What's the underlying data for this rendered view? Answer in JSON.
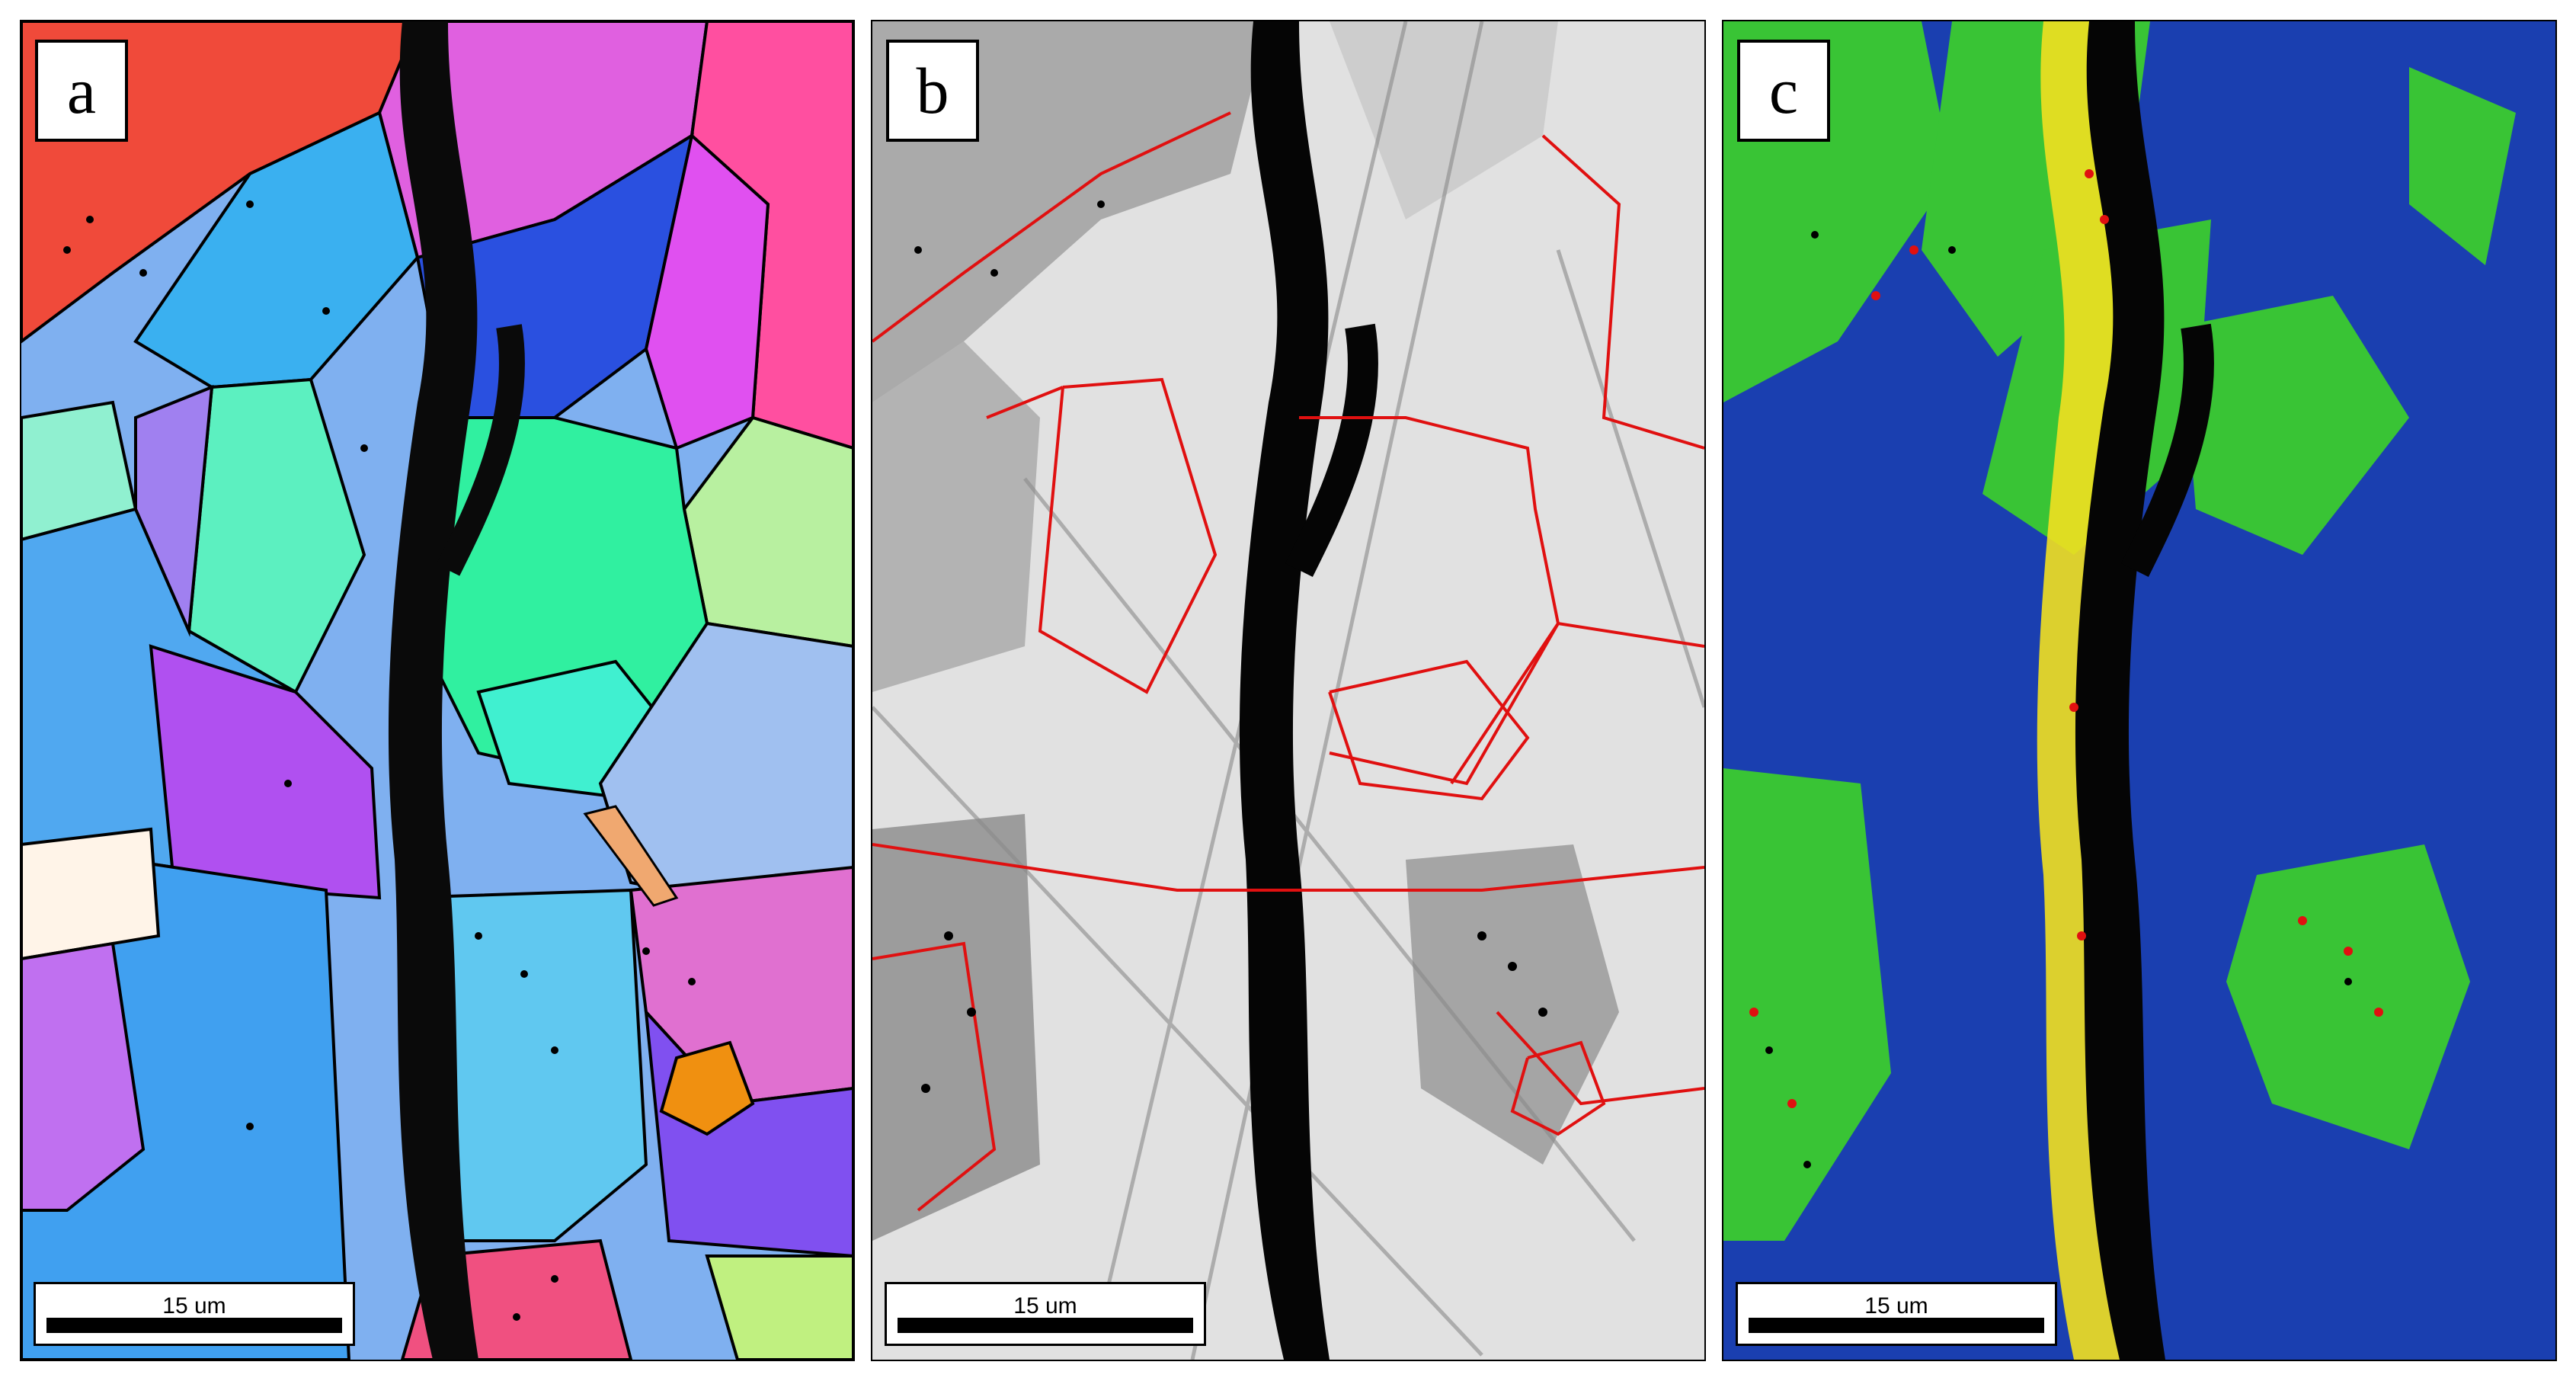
{
  "panels": [
    {
      "label": "a",
      "scale": "15 um"
    },
    {
      "label": "b",
      "scale": "15 um"
    },
    {
      "label": "c",
      "scale": "15 um"
    }
  ],
  "colors": {
    "grain_boundary": "#000000",
    "red_boundary": "#e01010",
    "map_c_background": "#1a3fb0",
    "map_c_green": "#3fdc20",
    "map_c_yellow": "#f2e020"
  }
}
